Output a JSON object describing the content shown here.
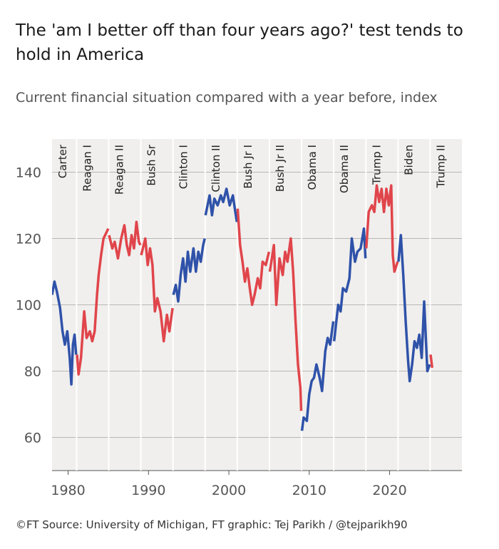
{
  "chart_data": {
    "type": "line",
    "title": "The 'am I better off than four years ago?' test tends to hold in America",
    "subtitle": "Current financial situation compared with a year before, index",
    "source": "©FT Source: University of Michigan, FT graphic: Tej Parikh / @tejparikh90",
    "xlim": [
      1978,
      2029
    ],
    "xticks": [
      1980,
      1990,
      2000,
      2010,
      2020
    ],
    "ylim": [
      50,
      150
    ],
    "yticks": [
      60,
      80,
      100,
      120,
      140
    ],
    "grid": true,
    "series": [
      {
        "name": "Carter",
        "start": 1977.05,
        "color": "#2f52a9",
        "x": [
          1978.0,
          1978.3,
          1978.6,
          1979.0,
          1979.3,
          1979.6,
          1979.9,
          1980.2,
          1980.4,
          1980.6,
          1980.8,
          1981.0
        ],
        "values": [
          103,
          107,
          104,
          99,
          92,
          88,
          92,
          84,
          76,
          88,
          91,
          85
        ]
      },
      {
        "name": "Reagan I",
        "start": 1981.05,
        "color": "#e0454b",
        "x": [
          1981.1,
          1981.3,
          1981.6,
          1982.0,
          1982.3,
          1982.7,
          1983.0,
          1983.3,
          1983.6,
          1983.8,
          1984.1,
          1984.4,
          1984.8,
          1985.0
        ],
        "values": [
          85,
          79,
          84,
          98,
          90,
          92,
          89,
          92,
          103,
          109,
          115,
          120,
          122,
          123
        ]
      },
      {
        "name": "Reagan II",
        "start": 1985.05,
        "color": "#e0454b",
        "x": [
          1985.1,
          1985.5,
          1985.8,
          1986.2,
          1986.6,
          1987.0,
          1987.3,
          1987.6,
          1987.9,
          1988.2,
          1988.5,
          1988.8,
          1989.0
        ],
        "values": [
          121,
          117,
          119,
          114,
          120,
          124,
          118,
          115,
          121,
          117,
          125,
          119,
          118
        ]
      },
      {
        "name": "Bush Sr",
        "start": 1989.05,
        "color": "#e0454b",
        "x": [
          1989.1,
          1989.6,
          1989.9,
          1990.2,
          1990.5,
          1990.8,
          1991.1,
          1991.5,
          1991.9,
          1992.3,
          1992.6,
          1993.0
        ],
        "values": [
          115,
          120,
          112,
          117,
          112,
          98,
          102,
          98,
          89,
          97,
          92,
          99
        ]
      },
      {
        "name": "Clinton I",
        "start": 1993.05,
        "color": "#2f52a9",
        "x": [
          1993.1,
          1993.4,
          1993.7,
          1994.0,
          1994.3,
          1994.6,
          1994.9,
          1995.2,
          1995.6,
          1995.9,
          1996.2,
          1996.5,
          1996.8,
          1997.0
        ],
        "values": [
          103,
          106,
          101,
          109,
          114,
          107,
          116,
          110,
          117,
          110,
          116,
          113,
          118,
          120
        ]
      },
      {
        "name": "Clinton II",
        "start": 1997.05,
        "color": "#2f52a9",
        "x": [
          1997.1,
          1997.6,
          1997.9,
          1998.2,
          1998.6,
          1999.0,
          1999.3,
          1999.7,
          2000.1,
          2000.5,
          2000.8,
          2001.0
        ],
        "values": [
          127,
          133,
          127,
          132,
          130,
          133,
          131,
          135,
          130,
          133,
          128,
          125
        ]
      },
      {
        "name": "Bush Jr I",
        "start": 2001.05,
        "color": "#e0454b",
        "x": [
          2001.1,
          2001.4,
          2001.7,
          2002.0,
          2002.3,
          2002.6,
          2002.9,
          2003.2,
          2003.6,
          2003.9,
          2004.2,
          2004.6,
          2005.0
        ],
        "values": [
          129,
          118,
          113,
          107,
          111,
          105,
          100,
          103,
          108,
          105,
          113,
          112,
          116
        ]
      },
      {
        "name": "Bush Jr II",
        "start": 2005.05,
        "color": "#e0454b",
        "x": [
          2005.1,
          2005.6,
          2005.9,
          2006.3,
          2006.7,
          2007.0,
          2007.3,
          2007.7,
          2008.0,
          2008.3,
          2008.6,
          2008.9,
          2009.0
        ],
        "values": [
          110,
          118,
          100,
          114,
          109,
          116,
          113,
          120,
          110,
          95,
          82,
          75,
          68
        ]
      },
      {
        "name": "Obama I",
        "start": 2009.05,
        "color": "#2f52a9",
        "x": [
          2009.1,
          2009.3,
          2009.7,
          2010.0,
          2010.3,
          2010.6,
          2010.9,
          2011.3,
          2011.6,
          2012.0,
          2012.3,
          2012.6,
          2013.0
        ],
        "values": [
          62,
          66,
          65,
          73,
          77,
          78,
          82,
          78,
          74,
          86,
          90,
          88,
          95
        ]
      },
      {
        "name": "Obama II",
        "start": 2013.05,
        "color": "#2f52a9",
        "x": [
          2013.1,
          2013.6,
          2013.9,
          2014.2,
          2014.6,
          2015.0,
          2015.3,
          2015.7,
          2016.0,
          2016.4,
          2016.8,
          2017.0
        ],
        "values": [
          89,
          100,
          98,
          105,
          104,
          108,
          120,
          113,
          116,
          117,
          123,
          114
        ]
      },
      {
        "name": "Trump I",
        "start": 2017.05,
        "color": "#e0454b",
        "x": [
          2017.1,
          2017.4,
          2017.8,
          2018.1,
          2018.4,
          2018.7,
          2019.0,
          2019.3,
          2019.6,
          2019.9,
          2020.2,
          2020.4,
          2020.6,
          2021.0
        ],
        "values": [
          117,
          128,
          130,
          128,
          136,
          131,
          135,
          128,
          135,
          130,
          136,
          115,
          110,
          113
        ]
      },
      {
        "name": "Biden",
        "start": 2021.05,
        "color": "#2f52a9",
        "x": [
          2021.1,
          2021.4,
          2021.7,
          2022.0,
          2022.3,
          2022.5,
          2022.8,
          2023.1,
          2023.4,
          2023.7,
          2024.0,
          2024.3,
          2024.7,
          2025.0
        ],
        "values": [
          113,
          121,
          109,
          95,
          83,
          77,
          82,
          89,
          87,
          91,
          84,
          101,
          80,
          82
        ]
      },
      {
        "name": "Trump II",
        "start": 2025.05,
        "color": "#e0454b",
        "x": [
          2025.1,
          2025.3
        ],
        "values": [
          85,
          81
        ]
      }
    ]
  }
}
